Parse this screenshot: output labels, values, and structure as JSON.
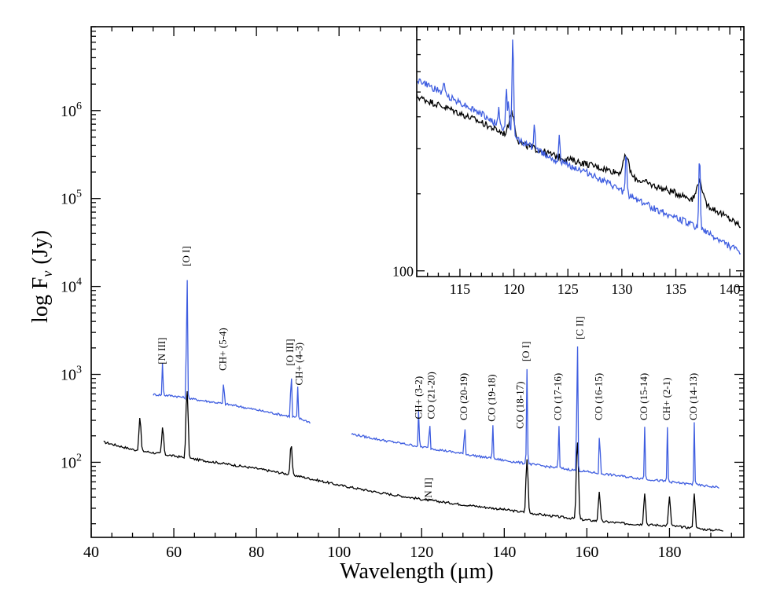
{
  "chart_data": [
    {
      "type": "line",
      "id": "main-spectrum",
      "xlabel": "Wavelength (μm)",
      "ylabel": "log F",
      "ylabel_sub": "ν",
      "ylabel_unit": "(Jy)",
      "xlim": [
        40,
        198
      ],
      "ylim": [
        14,
        9000000
      ],
      "yscale": "log",
      "x_ticks": [
        40,
        60,
        80,
        100,
        120,
        140,
        160,
        180
      ],
      "x_tick_labels": [
        "40",
        "60",
        "80",
        "100",
        "120",
        "140",
        "160",
        "180"
      ],
      "y_ticks": [
        100,
        1000,
        10000,
        100000,
        1000000
      ],
      "y_tick_base": "10",
      "y_tick_exps": [
        "2",
        "3",
        "4",
        "5",
        "6"
      ],
      "series": [
        {
          "name": "black spectrum",
          "color": "#000000",
          "continuum": [
            [
              43,
              170
            ],
            [
              50,
              140
            ],
            [
              60,
              118
            ],
            [
              70,
              100
            ],
            [
              80,
              85
            ],
            [
              90,
              70
            ],
            [
              100,
              55
            ],
            [
              110,
              45
            ],
            [
              120,
              38
            ],
            [
              130,
              33
            ],
            [
              140,
              29
            ],
            [
              150,
              25
            ],
            [
              160,
              22
            ],
            [
              170,
              20
            ],
            [
              180,
              19
            ],
            [
              190,
              17
            ],
            [
              193,
              17
            ]
          ],
          "lines": [
            [
              51.8,
              190
            ],
            [
              57.3,
              128
            ],
            [
              63.2,
              550
            ],
            [
              88.4,
              88
            ],
            [
              145.5,
              82
            ],
            [
              157.7,
              150
            ],
            [
              163.0,
              25
            ],
            [
              174.0,
              25
            ],
            [
              180.0,
              22
            ],
            [
              186.0,
              26
            ]
          ]
        },
        {
          "name": "blue spectrum segment 1",
          "color": "#3e5de0",
          "continuum": [
            [
              55,
              590
            ],
            [
              60,
              570
            ],
            [
              65,
              520
            ],
            [
              70,
              480
            ],
            [
              75,
              440
            ],
            [
              80,
              395
            ],
            [
              85,
              355
            ],
            [
              90,
              320
            ],
            [
              93,
              285
            ]
          ],
          "lines": [
            [
              57.3,
              870
            ],
            [
              63.2,
              13000
            ],
            [
              72.1,
              520
            ],
            [
              88.4,
              1000
            ],
            [
              90.0,
              400
            ]
          ]
        },
        {
          "name": "blue spectrum segment 2",
          "color": "#3e5de0",
          "continuum": [
            [
              103,
              210
            ],
            [
              110,
              180
            ],
            [
              120,
              150
            ],
            [
              130,
              125
            ],
            [
              140,
              105
            ],
            [
              150,
              90
            ],
            [
              160,
              78
            ],
            [
              170,
              68
            ],
            [
              180,
              60
            ],
            [
              190,
              53
            ],
            [
              192,
              52
            ]
          ],
          "lines": [
            [
              119.3,
              260
            ],
            [
              121.9,
              200
            ],
            [
              130.4,
              200
            ],
            [
              137.2,
              180
            ],
            [
              145.5,
              1050
            ],
            [
              153.2,
              200
            ],
            [
              157.7,
              2300
            ],
            [
              163.1,
              200
            ],
            [
              174.0,
              190
            ],
            [
              179.5,
              190
            ],
            [
              186.0,
              230
            ]
          ]
        }
      ],
      "annotations": [
        {
          "text": "[N III]",
          "x": 57.3,
          "y": 1300
        },
        {
          "text": "[O I]",
          "x": 63.2,
          "y": 17000
        },
        {
          "text": "CH+ (5-4)",
          "x": 72.1,
          "y": 1100
        },
        {
          "text": "[O III]",
          "x": 88.4,
          "y": 1250
        },
        {
          "text": "CH+ (4-3)",
          "x": 90.5,
          "y": 750
        },
        {
          "text": "CH+ (3-2)",
          "x": 119.5,
          "y": 310
        },
        {
          "text": "CO (21-20)",
          "x": 122.5,
          "y": 310
        },
        {
          "text": "CO (20-19)",
          "x": 130.4,
          "y": 300
        },
        {
          "text": "CO (19-18)",
          "x": 137.2,
          "y": 290
        },
        {
          "text": "CO (18-17)",
          "x": 144.0,
          "y": 240
        },
        {
          "text": "[O I]",
          "x": 145.5,
          "y": 1400
        },
        {
          "text": "CO (17-16)",
          "x": 153.2,
          "y": 300
        },
        {
          "text": "[C II]",
          "x": 158.5,
          "y": 2500
        },
        {
          "text": "CO (16-15)",
          "x": 163.1,
          "y": 300
        },
        {
          "text": "CO (15-14)",
          "x": 174.0,
          "y": 300
        },
        {
          "text": "CH+ (2-1)",
          "x": 179.5,
          "y": 300
        },
        {
          "text": "CO (14-13)",
          "x": 186.0,
          "y": 300
        },
        {
          "text": "[N II]",
          "x": 121.9,
          "y": 36
        }
      ]
    },
    {
      "type": "line",
      "id": "inset-spectrum",
      "xlim": [
        111,
        141.3
      ],
      "ylim": [
        95,
        900
      ],
      "yscale": "log",
      "x_ticks": [
        115,
        120,
        125,
        130,
        135,
        140
      ],
      "x_tick_labels": [
        "115",
        "120",
        "125",
        "130",
        "135",
        "140"
      ],
      "y_label_value": "100",
      "series": [
        {
          "name": "black spectrum (inset)",
          "color": "#000000",
          "continuum": [
            [
              111,
              480
            ],
            [
              114,
              430
            ],
            [
              117,
              380
            ],
            [
              119,
              345
            ],
            [
              121,
              310
            ],
            [
              124,
              280
            ],
            [
              127,
              260
            ],
            [
              130,
              240
            ],
            [
              133,
              215
            ],
            [
              136,
              195
            ],
            [
              138,
              180
            ],
            [
              141,
              150
            ]
          ],
          "lines": [
            [
              119.8,
              85
            ],
            [
              130.4,
              45
            ],
            [
              137.2,
              40
            ]
          ]
        },
        {
          "name": "blue spectrum (inset)",
          "color": "#3e5de0",
          "continuum": [
            [
              111,
              560
            ],
            [
              114,
              480
            ],
            [
              117,
              410
            ],
            [
              119,
              360
            ],
            [
              121,
              315
            ],
            [
              124,
              270
            ],
            [
              127,
              240
            ],
            [
              130,
              205
            ],
            [
              133,
              175
            ],
            [
              136,
              155
            ],
            [
              138,
              140
            ],
            [
              141,
              118
            ]
          ],
          "lines": [
            [
              113.5,
              60
            ],
            [
              118.6,
              70
            ],
            [
              119.3,
              160
            ],
            [
              119.5,
              120
            ],
            [
              119.9,
              480
            ],
            [
              121.9,
              80
            ],
            [
              124.2,
              70
            ],
            [
              130.4,
              90
            ],
            [
              137.2,
              140
            ]
          ]
        }
      ]
    }
  ]
}
